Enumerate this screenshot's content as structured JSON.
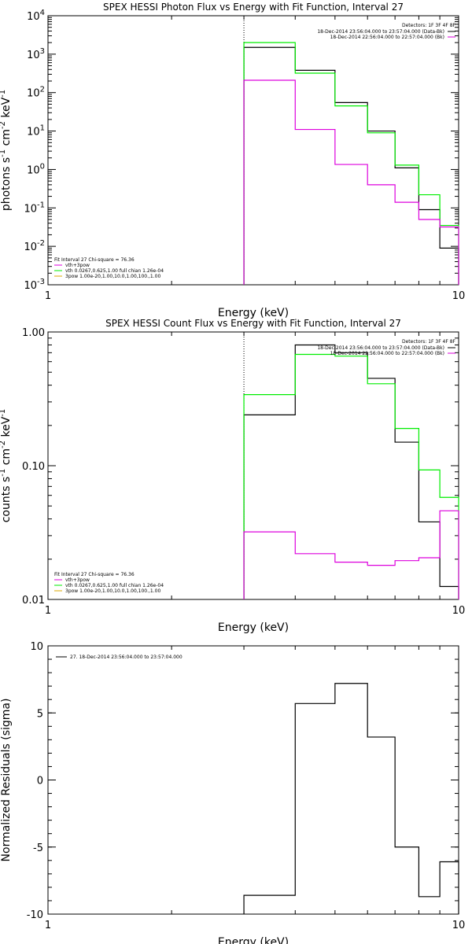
{
  "colors": {
    "data": "#000000",
    "model": "#dd00dd",
    "vth": "#00ee00",
    "bpow": "#ddaa00",
    "thermal": "#000000"
  },
  "chart_data": [
    {
      "type": "line",
      "title": "SPEX HESSI Photon Flux vs Energy with Fit Function, Interval 27",
      "xlabel": "Energy (keV)",
      "ylabel_base": "photons s",
      "ylabel_mid": " cm",
      "ylabel_end": " keV",
      "ylabel_exp1": "-1",
      "ylabel_exp2": "-2",
      "ylabel_exp3": "-1",
      "xscale": "log",
      "yscale": "log",
      "xlim": [
        1,
        10
      ],
      "ylim": [
        0.001,
        10000
      ],
      "xticks": [
        {
          "v": 1,
          "label": "1"
        },
        {
          "v": 10,
          "label": "10"
        }
      ],
      "yticks": [
        {
          "v": 0.001,
          "b": "10",
          "e": "-3"
        },
        {
          "v": 0.01,
          "b": "10",
          "e": "-2"
        },
        {
          "v": 0.1,
          "b": "10",
          "e": "-1"
        },
        {
          "v": 1,
          "b": "10",
          "e": "0"
        },
        {
          "v": 10,
          "b": "10",
          "e": "1"
        },
        {
          "v": 100,
          "b": "10",
          "e": "2"
        },
        {
          "v": 1000,
          "b": "10",
          "e": "3"
        },
        {
          "v": 10000,
          "b": "10",
          "e": "4"
        }
      ],
      "bin_edges": [
        3,
        4,
        5,
        6,
        7,
        8,
        9,
        10
      ],
      "vline": 3,
      "series": [
        {
          "color": "#000000",
          "values": [
            1500,
            380,
            55,
            10,
            1.1,
            0.09,
            0.009
          ]
        },
        {
          "color": "#00ee00",
          "values": [
            2000,
            320,
            45,
            9,
            1.3,
            0.22,
            0.035
          ]
        },
        {
          "color": "#dd00dd",
          "values": [
            210,
            11,
            1.35,
            0.4,
            0.14,
            0.05,
            0.032
          ]
        }
      ],
      "legend": {
        "title": "Detectors: 1F 3F 4F 8F",
        "entries": [
          {
            "label": "18-Dec-2014 23:56:04.000 to 23:57:04.000 (Data-Bk)",
            "color": "#000000"
          },
          {
            "label": "18-Dec-2014 22:56:04.000 to 22:57:04.000 (Bk)",
            "color": "#dd00dd"
          }
        ]
      },
      "fit_legend": {
        "title": "Fit Interval  27   Chi-square = 76.36",
        "entries": [
          {
            "label": "vth+3pow",
            "color": "#dd00dd"
          },
          {
            "label": "vth 0.0267,0.625,1.00  full chian 1.26e-04",
            "color": "#00ee00"
          },
          {
            "label": "3pow 1.00e-20,1.00,10.0,1.00,100.,1.00",
            "color": "#ddaa00"
          }
        ]
      }
    },
    {
      "type": "line",
      "title": "SPEX HESSI Count Flux vs Energy with Fit Function, Interval 27",
      "xlabel": "Energy (keV)",
      "ylabel_base": "counts s",
      "ylabel_mid": " cm",
      "ylabel_end": " keV",
      "ylabel_exp1": "-1",
      "ylabel_exp2": "-2",
      "ylabel_exp3": "-1",
      "xscale": "log",
      "yscale": "log",
      "xlim": [
        1,
        10
      ],
      "ylim": [
        0.01,
        1.0
      ],
      "xticks": [
        {
          "v": 1,
          "label": "1"
        },
        {
          "v": 10,
          "label": "10"
        }
      ],
      "yticks": [
        {
          "v": 0.01,
          "b": "0.01",
          "e": ""
        },
        {
          "v": 0.1,
          "b": "0.10",
          "e": ""
        },
        {
          "v": 1.0,
          "b": "1.00",
          "e": ""
        }
      ],
      "bin_edges": [
        3,
        4,
        5,
        6,
        7,
        8,
        9,
        10
      ],
      "vline": 3,
      "series": [
        {
          "color": "#000000",
          "values": [
            0.24,
            0.8,
            0.7,
            0.45,
            0.15,
            0.038,
            0.0125
          ]
        },
        {
          "color": "#00ee00",
          "values": [
            0.34,
            0.68,
            0.66,
            0.41,
            0.19,
            0.093,
            0.058
          ]
        },
        {
          "color": "#dd00dd",
          "values": [
            0.032,
            0.022,
            0.019,
            0.018,
            0.0195,
            0.0205,
            0.046
          ]
        }
      ],
      "legend": {
        "title": "Detectors: 1F 3F 4F 8F",
        "entries": [
          {
            "label": "18-Dec-2014 23:56:04.000 to 23:57:04.000 (Data-Bk)",
            "color": "#000000"
          },
          {
            "label": "18-Dec-2014 22:56:04.000 to 22:57:04.000 (Bk)",
            "color": "#dd00dd"
          }
        ]
      },
      "fit_legend": {
        "title": "Fit Interval  27   Chi-square = 76.36",
        "entries": [
          {
            "label": "vth+3pow",
            "color": "#dd00dd"
          },
          {
            "label": "vth 0.0267,0.625,1.00  full chian 1.26e-04",
            "color": "#00ee00"
          },
          {
            "label": "3pow 1.00e-20,1.00,10.0,1.00,100.,1.00",
            "color": "#ddaa00"
          }
        ]
      }
    },
    {
      "type": "line",
      "title": "",
      "xlabel": "Energy (keV)",
      "ylabel": "Normalized Residuals (sigma)",
      "xscale": "log",
      "yscale": "linear",
      "xlim": [
        1,
        10
      ],
      "ylim": [
        -10,
        10
      ],
      "xticks": [
        {
          "v": 1,
          "label": "1"
        },
        {
          "v": 10,
          "label": "10"
        }
      ],
      "yticks": [
        {
          "v": -10,
          "label": "-10"
        },
        {
          "v": -5,
          "label": "-5"
        },
        {
          "v": 0,
          "label": "0"
        },
        {
          "v": 5,
          "label": "5"
        },
        {
          "v": 10,
          "label": "10"
        }
      ],
      "bin_edges": [
        3,
        4,
        5,
        6,
        7,
        8,
        9,
        10
      ],
      "series": [
        {
          "color": "#000000",
          "values": [
            -8.6,
            5.7,
            7.2,
            3.2,
            -5.0,
            -8.7,
            -6.1
          ]
        }
      ],
      "legend": {
        "title": "",
        "entries": [
          {
            "label": "27. 18-Dec-2014 23:56:04.000 to 23:57:04.000",
            "color": "#000000"
          }
        ]
      }
    }
  ]
}
